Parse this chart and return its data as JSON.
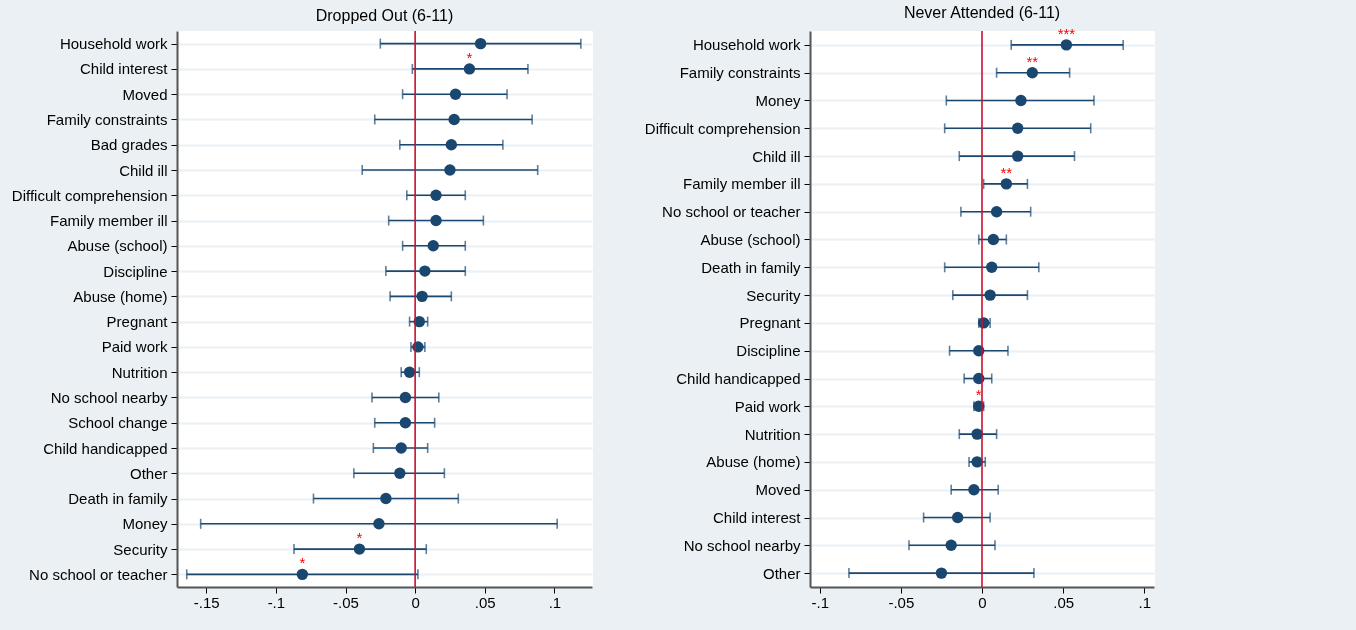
{
  "chart_data": [
    {
      "type": "scatter",
      "title": "Dropped Out (6-11)",
      "orientation": "horizontal",
      "marker": "circle",
      "grid": "y",
      "categories": [
        "Household work",
        "Child interest",
        "Moved",
        "Family constraints",
        "Bad grades",
        "Child ill",
        "Difficult comprehension",
        "Family member ill",
        "Abuse (school)",
        "Discipline",
        "Abuse (home)",
        "Pregnant",
        "Paid work",
        "Nutrition",
        "No school nearby",
        "School change",
        "Child handicapped",
        "Other",
        "Death in family",
        "Money",
        "Security",
        "No school or teacher"
      ],
      "series": [
        {
          "color": "#1a476f",
          "values": [
            0.047,
            0.039,
            0.029,
            0.028,
            0.026,
            0.025,
            0.015,
            0.015,
            0.013,
            0.007,
            0.005,
            0.003,
            0.002,
            -0.004,
            -0.007,
            -0.007,
            -0.01,
            -0.011,
            -0.021,
            -0.026,
            -0.04,
            -0.081
          ],
          "errors": [
            [
              -0.025,
              0.119
            ],
            [
              -0.002,
              0.081
            ],
            [
              -0.009,
              0.066
            ],
            [
              -0.029,
              0.084
            ],
            [
              -0.011,
              0.063
            ],
            [
              -0.038,
              0.088
            ],
            [
              -0.006,
              0.036
            ],
            [
              -0.019,
              0.049
            ],
            [
              -0.009,
              0.036
            ],
            [
              -0.021,
              0.036
            ],
            [
              -0.018,
              0.026
            ],
            [
              -0.004,
              0.009
            ],
            [
              -0.003,
              0.007
            ],
            [
              -0.01,
              0.003
            ],
            [
              -0.031,
              0.017
            ],
            [
              -0.029,
              0.014
            ],
            [
              -0.03,
              0.009
            ],
            [
              -0.044,
              0.021
            ],
            [
              -0.073,
              0.031
            ],
            [
              -0.154,
              0.102
            ],
            [
              -0.087,
              0.008
            ],
            [
              -0.164,
              0.002
            ]
          ]
        }
      ],
      "xlim": [
        -0.171,
        0.127
      ],
      "xticks": [
        {
          "value": -0.15,
          "label": "-.15"
        },
        {
          "value": -0.1,
          "label": "-.1"
        },
        {
          "value": -0.05,
          "label": "-.05"
        },
        0,
        {
          "value": 0.05,
          "label": ".05"
        },
        {
          "value": 0.1,
          "label": ".1"
        }
      ],
      "ref_lines": [
        {
          "axis": "x",
          "value": 0,
          "color": "#c8102e"
        }
      ],
      "annotations": [
        {
          "text": "*",
          "x": 0.039,
          "y": "Child interest"
        },
        {
          "text": "*",
          "x": -0.04,
          "y": "Security"
        },
        {
          "text": "*",
          "x": -0.081,
          "y": "No school or teacher"
        }
      ]
    },
    {
      "type": "scatter",
      "title": "Never Attended (6-11)",
      "orientation": "horizontal",
      "marker": "circle",
      "grid": "y",
      "categories": [
        "Household work",
        "Family constraints",
        "Money",
        "Difficult comprehension",
        "Child ill",
        "Family member ill",
        "No school or teacher",
        "Abuse (school)",
        "Death in family",
        "Security",
        "Pregnant",
        "Discipline",
        "Child handicapped",
        "Paid work",
        "Nutrition",
        "Abuse (home)",
        "Moved",
        "Child interest",
        "No school nearby",
        "Other"
      ],
      "series": [
        {
          "color": "#1a476f",
          "values": [
            0.052,
            0.031,
            0.024,
            0.022,
            0.022,
            0.015,
            0.009,
            0.007,
            0.006,
            0.005,
            0.001,
            -0.002,
            -0.002,
            -0.002,
            -0.003,
            -0.003,
            -0.005,
            -0.015,
            -0.019,
            -0.025
          ],
          "errors": [
            [
              0.018,
              0.087
            ],
            [
              0.009,
              0.054
            ],
            [
              -0.022,
              0.069
            ],
            [
              -0.023,
              0.067
            ],
            [
              -0.014,
              0.057
            ],
            [
              0.001,
              0.028
            ],
            [
              -0.013,
              0.03
            ],
            [
              -0.002,
              0.015
            ],
            [
              -0.023,
              0.035
            ],
            [
              -0.018,
              0.028
            ],
            [
              -0.002,
              0.005
            ],
            [
              -0.02,
              0.016
            ],
            [
              -0.011,
              0.006
            ],
            [
              -0.005,
              0.001
            ],
            [
              -0.014,
              0.009
            ],
            [
              -0.008,
              0.002
            ],
            [
              -0.019,
              0.01
            ],
            [
              -0.036,
              0.005
            ],
            [
              -0.045,
              0.008
            ],
            [
              -0.082,
              0.032
            ]
          ]
        }
      ],
      "xlim": [
        -0.106,
        0.106
      ],
      "xticks": [
        {
          "value": -0.1,
          "label": "-.1"
        },
        {
          "value": -0.05,
          "label": "-.05"
        },
        0,
        {
          "value": 0.05,
          "label": ".05"
        },
        {
          "value": 0.1,
          "label": ".1"
        }
      ],
      "ref_lines": [
        {
          "axis": "x",
          "value": 0,
          "color": "#c8102e"
        }
      ],
      "annotations": [
        {
          "text": "***",
          "x": 0.052,
          "y": "Household work"
        },
        {
          "text": "**",
          "x": 0.031,
          "y": "Family constraints"
        },
        {
          "text": "**",
          "x": 0.015,
          "y": "Family member ill"
        },
        {
          "text": "*",
          "x": -0.002,
          "y": "Paid work"
        }
      ]
    }
  ]
}
